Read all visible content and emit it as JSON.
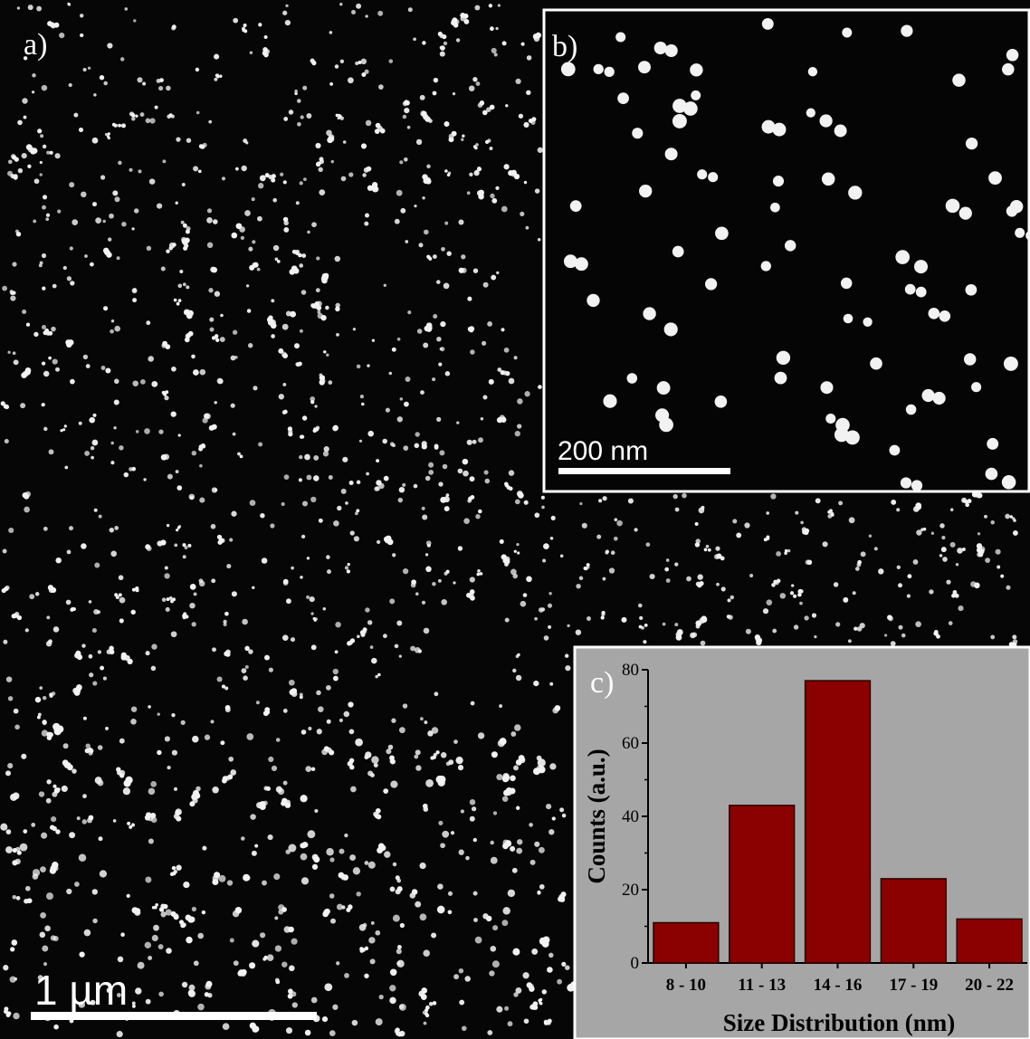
{
  "panels": {
    "a": {
      "label": "a)",
      "scale_bar": "1 µm"
    },
    "b": {
      "label": "b)",
      "scale_bar": "200 nm"
    },
    "c": {
      "label": "c)"
    }
  },
  "colors": {
    "background": "#000000",
    "particle": "#f2f2f2",
    "histogram_panel": "#a6a6a6",
    "bar_fill": "#8b0000",
    "bar_stroke": "#2a0000"
  },
  "chart_data": {
    "type": "bar",
    "categories": [
      "8 - 10",
      "11 - 13",
      "14 - 16",
      "17 - 19",
      "20 - 22"
    ],
    "values": [
      11,
      43,
      77,
      23,
      12
    ],
    "xlabel": "Size Distribution (nm)",
    "ylabel": "Counts (a.u.)",
    "ylim": [
      0,
      80
    ],
    "yticks": [
      0,
      20,
      40,
      60,
      80
    ],
    "grid": false
  }
}
